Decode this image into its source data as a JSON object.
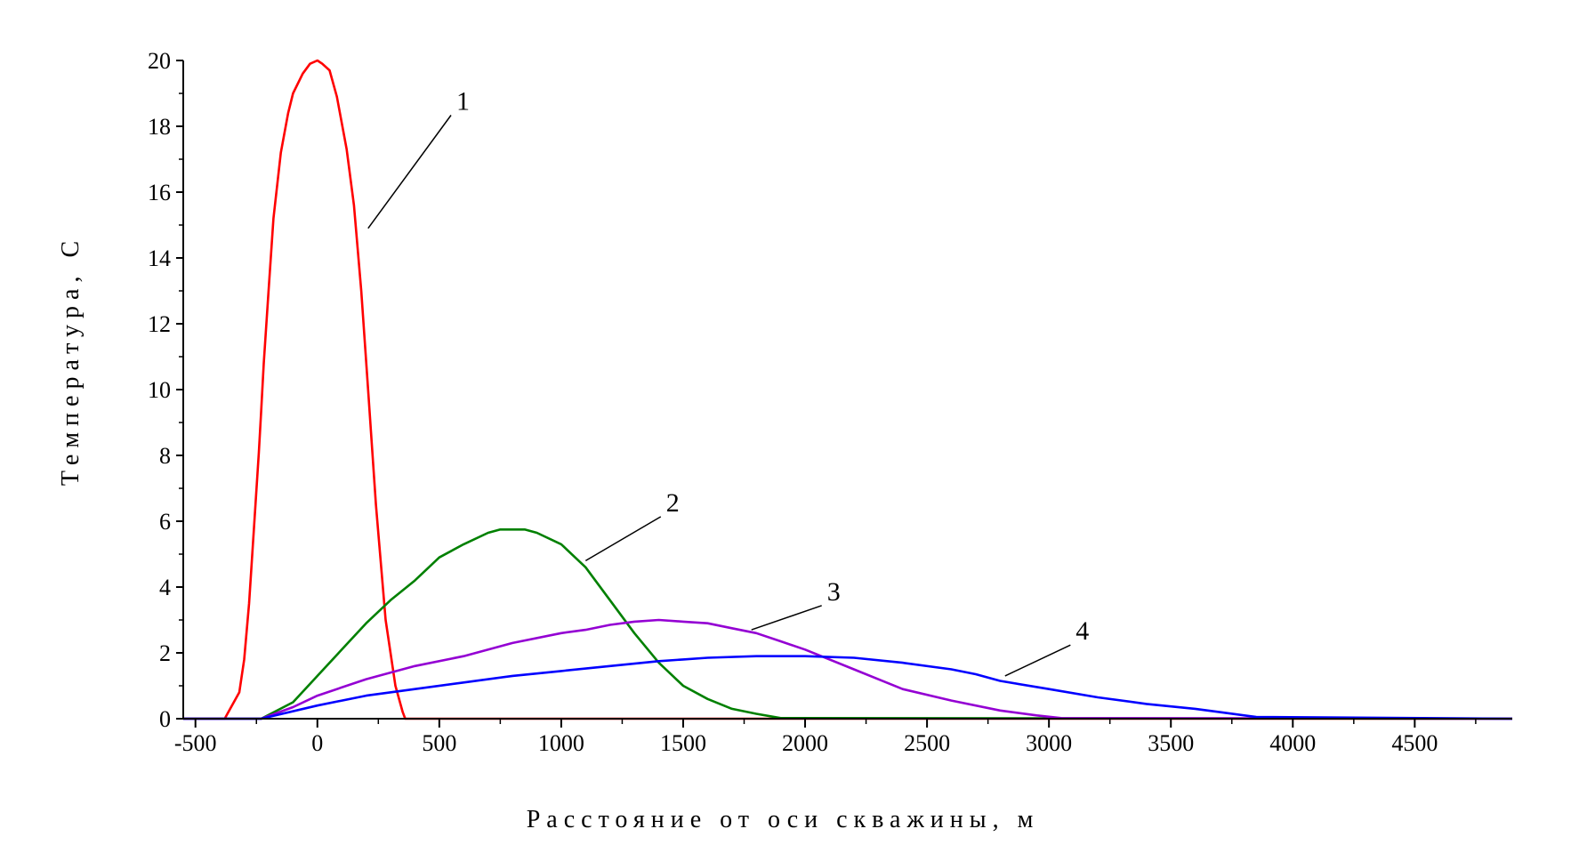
{
  "chart_data": {
    "type": "line",
    "title": "",
    "xlabel": "Расстояние от оси скважины, м",
    "ylabel": "Температура, С",
    "xlim": [
      -550,
      4900
    ],
    "ylim": [
      0,
      20
    ],
    "x_ticks": [
      -500,
      0,
      500,
      1000,
      1500,
      2000,
      2500,
      3000,
      3500,
      4000,
      4500
    ],
    "x_tick_labels": [
      "-500",
      "0",
      "500",
      "1000",
      "1500",
      "2000",
      "2500",
      "3000",
      "3500",
      "4000",
      "4500"
    ],
    "y_ticks": [
      0,
      2,
      4,
      6,
      8,
      10,
      12,
      14,
      16,
      18,
      20
    ],
    "y_tick_labels": [
      "0",
      "2",
      "4",
      "6",
      "8",
      "10",
      "12",
      "14",
      "16",
      "18",
      "20"
    ],
    "grid": false,
    "legend": "none",
    "series": [
      {
        "label": "1",
        "color": "#ff0000",
        "label_pos": [
          570,
          18.5
        ],
        "pointer_to": [
          208,
          14.9
        ],
        "x": [
          -550,
          -380,
          -320,
          -300,
          -280,
          -260,
          -240,
          -230,
          -220,
          -200,
          -180,
          -150,
          -120,
          -100,
          -60,
          -30,
          0,
          20,
          50,
          80,
          120,
          150,
          180,
          210,
          240,
          280,
          320,
          350,
          360,
          4900
        ],
        "y": [
          0,
          0,
          0.8,
          1.8,
          3.5,
          5.8,
          8.1,
          9.4,
          10.8,
          13.0,
          15.2,
          17.2,
          18.4,
          19.0,
          19.6,
          19.9,
          20.0,
          19.9,
          19.7,
          18.9,
          17.3,
          15.6,
          13.0,
          9.8,
          6.5,
          3.0,
          1.0,
          0.2,
          0,
          0
        ]
      },
      {
        "label": "2",
        "color": "#008000",
        "label_pos": [
          1430,
          6.3
        ],
        "pointer_to": [
          1100,
          4.8
        ],
        "x": [
          -550,
          -230,
          -100,
          0,
          100,
          200,
          300,
          400,
          500,
          600,
          700,
          750,
          800,
          850,
          900,
          1000,
          1100,
          1200,
          1300,
          1400,
          1500,
          1600,
          1700,
          1800,
          1900,
          4900
        ],
        "y": [
          0,
          0,
          0.5,
          1.3,
          2.1,
          2.9,
          3.6,
          4.2,
          4.9,
          5.3,
          5.65,
          5.75,
          5.75,
          5.75,
          5.65,
          5.3,
          4.6,
          3.6,
          2.6,
          1.7,
          1.0,
          0.6,
          0.3,
          0.15,
          0.02,
          0
        ]
      },
      {
        "label": "3",
        "color": "#9400d3",
        "label_pos": [
          2090,
          3.6
        ],
        "pointer_to": [
          1780,
          2.7
        ],
        "x": [
          -550,
          -230,
          -100,
          0,
          200,
          400,
          600,
          800,
          1000,
          1100,
          1200,
          1300,
          1400,
          1500,
          1600,
          1700,
          1800,
          1900,
          2000,
          2200,
          2400,
          2600,
          2800,
          2950,
          3050,
          4900
        ],
        "y": [
          0,
          0,
          0.35,
          0.7,
          1.2,
          1.6,
          1.9,
          2.3,
          2.6,
          2.7,
          2.85,
          2.95,
          3.0,
          2.95,
          2.9,
          2.75,
          2.6,
          2.35,
          2.1,
          1.5,
          0.9,
          0.55,
          0.25,
          0.1,
          0.02,
          0
        ]
      },
      {
        "label": "4",
        "color": "#0000ff",
        "label_pos": [
          3110,
          2.4
        ],
        "pointer_to": [
          2820,
          1.3
        ],
        "x": [
          -550,
          -230,
          0,
          200,
          400,
          600,
          800,
          1000,
          1200,
          1400,
          1500,
          1600,
          1800,
          2000,
          2200,
          2400,
          2600,
          2700,
          2800,
          3000,
          3200,
          3400,
          3600,
          3700,
          3850,
          4900
        ],
        "y": [
          0,
          0,
          0.4,
          0.7,
          0.9,
          1.1,
          1.3,
          1.45,
          1.6,
          1.75,
          1.8,
          1.85,
          1.9,
          1.9,
          1.85,
          1.7,
          1.5,
          1.35,
          1.15,
          0.9,
          0.65,
          0.45,
          0.3,
          0.2,
          0.05,
          0
        ]
      }
    ]
  }
}
